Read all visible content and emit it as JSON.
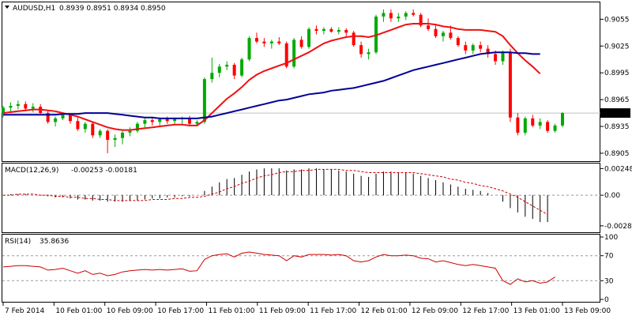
{
  "window": {
    "symbol_title": "AUDUSD,H1",
    "ohlc_text": "0.8939 0.8951 0.8934 0.8950"
  },
  "colors": {
    "background": "#ffffff",
    "frame": "#000000",
    "grid": "#c0c0c0",
    "bull": "#00aa00",
    "bear": "#ff0000",
    "ma_fast": "#ee1111",
    "ma_slow": "#000099",
    "price_marker_bg": "#000000",
    "macd_hist": "#000000",
    "macd_signal": "#cc0000",
    "rsi_line": "#cc0000",
    "level_line": "#999999"
  },
  "chart_data": [
    {
      "type": "candlestick",
      "title": "AUDUSD,H1 0.8939 0.8951 0.8934 0.8950",
      "ylim": [
        0.8897,
        0.9073
      ],
      "y_ticks": [
        "0.9055",
        "0.9025",
        "0.8995",
        "0.8965",
        "0.8935",
        "0.8905"
      ],
      "y_tick_values": [
        0.9055,
        0.9025,
        0.8995,
        0.8965,
        0.8935,
        0.8905
      ],
      "current_price_label": "0.8950",
      "current_price": 0.895,
      "grid": false,
      "candles": [
        [
          0.895,
          0.8958,
          0.8945,
          0.8956
        ],
        [
          0.8956,
          0.8962,
          0.895,
          0.8958
        ],
        [
          0.8958,
          0.8964,
          0.8954,
          0.896
        ],
        [
          0.896,
          0.8963,
          0.8952,
          0.8955
        ],
        [
          0.8955,
          0.8961,
          0.8951,
          0.8957
        ],
        [
          0.8957,
          0.896,
          0.8948,
          0.895
        ],
        [
          0.895,
          0.8952,
          0.8938,
          0.894
        ],
        [
          0.894,
          0.8946,
          0.8935,
          0.8944
        ],
        [
          0.8944,
          0.895,
          0.8942,
          0.8948
        ],
        [
          0.8948,
          0.895,
          0.8938,
          0.8941
        ],
        [
          0.8941,
          0.8945,
          0.893,
          0.8932
        ],
        [
          0.8932,
          0.894,
          0.8928,
          0.8938
        ],
        [
          0.8938,
          0.894,
          0.8922,
          0.8925
        ],
        [
          0.8925,
          0.8932,
          0.8922,
          0.893
        ],
        [
          0.893,
          0.8932,
          0.8905,
          0.892
        ],
        [
          0.892,
          0.8926,
          0.8912,
          0.8922
        ],
        [
          0.8922,
          0.893,
          0.8915,
          0.8928
        ],
        [
          0.8928,
          0.8934,
          0.8924,
          0.893
        ],
        [
          0.893,
          0.894,
          0.8928,
          0.8938
        ],
        [
          0.8938,
          0.8944,
          0.8934,
          0.8942
        ],
        [
          0.8942,
          0.8946,
          0.8936,
          0.894
        ],
        [
          0.894,
          0.8945,
          0.8936,
          0.8943
        ],
        [
          0.8943,
          0.8946,
          0.8938,
          0.8941
        ],
        [
          0.8941,
          0.8945,
          0.8937,
          0.8943
        ],
        [
          0.8943,
          0.8946,
          0.8938,
          0.8944
        ],
        [
          0.8944,
          0.8947,
          0.8935,
          0.8938
        ],
        [
          0.8938,
          0.8942,
          0.8935,
          0.894
        ],
        [
          0.894,
          0.899,
          0.8938,
          0.8988
        ],
        [
          0.8988,
          0.9012,
          0.8984,
          0.8995
        ],
        [
          0.8995,
          0.9005,
          0.899,
          0.9002
        ],
        [
          0.9002,
          0.9008,
          0.8998,
          0.9004
        ],
        [
          0.9004,
          0.9006,
          0.8988,
          0.8992
        ],
        [
          0.8992,
          0.9012,
          0.899,
          0.901
        ],
        [
          0.901,
          0.9036,
          0.9008,
          0.9034
        ],
        [
          0.9034,
          0.904,
          0.9028,
          0.903
        ],
        [
          0.903,
          0.9034,
          0.9024,
          0.9028
        ],
        [
          0.9028,
          0.9032,
          0.9022,
          0.903
        ],
        [
          0.903,
          0.9035,
          0.9026,
          0.9028
        ],
        [
          0.9028,
          0.903,
          0.9,
          0.9002
        ],
        [
          0.9002,
          0.9034,
          0.9,
          0.9032
        ],
        [
          0.9032,
          0.9036,
          0.9022,
          0.9024
        ],
        [
          0.9024,
          0.9046,
          0.9022,
          0.9044
        ],
        [
          0.9044,
          0.9048,
          0.9038,
          0.9042
        ],
        [
          0.9042,
          0.9046,
          0.9038,
          0.9044
        ],
        [
          0.9044,
          0.9046,
          0.904,
          0.9041
        ],
        [
          0.9041,
          0.9046,
          0.9038,
          0.9043
        ],
        [
          0.9043,
          0.9045,
          0.9036,
          0.904
        ],
        [
          0.904,
          0.9042,
          0.9024,
          0.9026
        ],
        [
          0.9026,
          0.903,
          0.9012,
          0.9016
        ],
        [
          0.9016,
          0.9022,
          0.901,
          0.9018
        ],
        [
          0.9018,
          0.906,
          0.9016,
          0.9058
        ],
        [
          0.9058,
          0.9066,
          0.9052,
          0.9062
        ],
        [
          0.9062,
          0.9066,
          0.9052,
          0.9056
        ],
        [
          0.9056,
          0.9062,
          0.9052,
          0.9058
        ],
        [
          0.9058,
          0.9064,
          0.9054,
          0.9062
        ],
        [
          0.9062,
          0.9066,
          0.9058,
          0.906
        ],
        [
          0.906,
          0.9062,
          0.9046,
          0.9048
        ],
        [
          0.9048,
          0.9056,
          0.9042,
          0.9044
        ],
        [
          0.9044,
          0.905,
          0.9034,
          0.9036
        ],
        [
          0.9036,
          0.9042,
          0.903,
          0.904
        ],
        [
          0.904,
          0.9048,
          0.9032,
          0.9034
        ],
        [
          0.9034,
          0.9036,
          0.9024,
          0.9026
        ],
        [
          0.9026,
          0.903,
          0.9016,
          0.902
        ],
        [
          0.902,
          0.9028,
          0.9016,
          0.9026
        ],
        [
          0.9026,
          0.903,
          0.9018,
          0.9022
        ],
        [
          0.9022,
          0.9026,
          0.9012,
          0.9016
        ],
        [
          0.9016,
          0.902,
          0.9004,
          0.9008
        ],
        [
          0.9008,
          0.902,
          0.9004,
          0.9018
        ],
        [
          0.9018,
          0.9022,
          0.894,
          0.8945
        ],
        [
          0.8945,
          0.895,
          0.8925,
          0.8928
        ],
        [
          0.8928,
          0.8946,
          0.8925,
          0.8944
        ],
        [
          0.8944,
          0.8948,
          0.8934,
          0.8936
        ],
        [
          0.8936,
          0.8944,
          0.8932,
          0.894
        ],
        [
          0.894,
          0.8942,
          0.8928,
          0.893
        ],
        [
          0.893,
          0.8938,
          0.8928,
          0.8936
        ],
        [
          0.8936,
          0.8951,
          0.8934,
          0.895
        ]
      ],
      "series": [
        {
          "values": [
            0.895,
            0.8951,
            0.8952,
            0.8953,
            0.8954,
            0.8954,
            0.8953,
            0.8952,
            0.895,
            0.8948,
            0.8946,
            0.8943,
            0.894,
            0.8937,
            0.8934,
            0.8932,
            0.8931,
            0.8931,
            0.8932,
            0.8933,
            0.8934,
            0.8935,
            0.8936,
            0.8937,
            0.8937,
            0.8936,
            0.8936,
            0.8942,
            0.895,
            0.8958,
            0.8966,
            0.8972,
            0.8979,
            0.8987,
            0.8993,
            0.8997,
            0.9,
            0.9003,
            0.9006,
            0.901,
            0.9014,
            0.9018,
            0.9023,
            0.9028,
            0.9031,
            0.9033,
            0.9035,
            0.9036,
            0.9036,
            0.9035,
            0.9037,
            0.904,
            0.9043,
            0.9046,
            0.9049,
            0.905,
            0.905,
            0.905,
            0.9049,
            0.9047,
            0.9046,
            0.9044,
            0.9043,
            0.9043,
            0.9043,
            0.9042,
            0.9041,
            0.9036,
            0.9026,
            0.9017,
            0.9009,
            0.9002,
            0.8994
          ]
        },
        {
          "values": [
            0.8948,
            0.8948,
            0.8948,
            0.8948,
            0.8948,
            0.8948,
            0.8948,
            0.8948,
            0.8949,
            0.8949,
            0.8949,
            0.895,
            0.895,
            0.895,
            0.895,
            0.8949,
            0.8948,
            0.8947,
            0.8946,
            0.8945,
            0.8945,
            0.8944,
            0.8944,
            0.8944,
            0.8944,
            0.8944,
            0.8944,
            0.8945,
            0.8946,
            0.8948,
            0.895,
            0.8952,
            0.8954,
            0.8956,
            0.8958,
            0.896,
            0.8962,
            0.8964,
            0.8965,
            0.8967,
            0.8969,
            0.8971,
            0.8972,
            0.8973,
            0.8975,
            0.8976,
            0.8977,
            0.8978,
            0.898,
            0.8982,
            0.8984,
            0.8986,
            0.8989,
            0.8992,
            0.8995,
            0.8998,
            0.9,
            0.9002,
            0.9004,
            0.9006,
            0.9008,
            0.901,
            0.9012,
            0.9014,
            0.9016,
            0.9017,
            0.9018,
            0.9018,
            0.9018,
            0.9017,
            0.9017,
            0.9016,
            0.9016
          ]
        }
      ]
    },
    {
      "type": "bar",
      "title": "MACD(12,26,9) -0.00253 -0.00181",
      "label_main": "MACD(12,26,9)",
      "label_values": "-0.00253 -0.00181",
      "ylim": [
        -0.0033,
        0.0028
      ],
      "y_ticks": [
        "0.00248",
        "0.00",
        "-0.00285"
      ],
      "y_tick_values": [
        0.00248,
        0.0,
        -0.00285
      ],
      "zero_line": 0.0,
      "values": [
        0.0,
        0.0001,
        0.0001,
        0.0001,
        0.0,
        0.0,
        -0.0001,
        -0.0002,
        -0.0002,
        -0.0003,
        -0.0004,
        -0.0004,
        -0.0005,
        -0.0005,
        -0.0006,
        -0.0006,
        -0.0006,
        -0.0005,
        -0.0005,
        -0.0004,
        -0.0003,
        -0.0003,
        -0.0002,
        -0.0002,
        -0.0001,
        -0.0001,
        0.0,
        0.0004,
        0.0008,
        0.0012,
        0.0015,
        0.0016,
        0.0019,
        0.0022,
        0.0024,
        0.0025,
        0.0025,
        0.0025,
        0.0023,
        0.0024,
        0.0024,
        0.0025,
        0.0025,
        0.0024,
        0.0024,
        0.0023,
        0.0022,
        0.002,
        0.0018,
        0.0017,
        0.002,
        0.0022,
        0.0022,
        0.0021,
        0.0021,
        0.002,
        0.0018,
        0.0016,
        0.0014,
        0.0012,
        0.001,
        0.0008,
        0.0006,
        0.0005,
        0.0004,
        0.0002,
        0.0,
        -0.0006,
        -0.0012,
        -0.0016,
        -0.002,
        -0.0022,
        -0.0025,
        -0.0025
      ],
      "signal": [
        0.0,
        0.0,
        0.0001,
        0.0001,
        0.0001,
        0.0,
        0.0,
        -0.0001,
        -0.0001,
        -0.0002,
        -0.0002,
        -0.0003,
        -0.0003,
        -0.0004,
        -0.0004,
        -0.0005,
        -0.0005,
        -0.0005,
        -0.0005,
        -0.0005,
        -0.0004,
        -0.0004,
        -0.0004,
        -0.0003,
        -0.0003,
        -0.0002,
        -0.0002,
        -0.0001,
        0.0001,
        0.0003,
        0.0006,
        0.0008,
        0.0011,
        0.0013,
        0.0016,
        0.0018,
        0.0019,
        0.0021,
        0.0022,
        0.0022,
        0.0023,
        0.0023,
        0.0024,
        0.0024,
        0.0024,
        0.0024,
        0.0023,
        0.0023,
        0.0022,
        0.0021,
        0.0021,
        0.0021,
        0.0021,
        0.0021,
        0.0021,
        0.0021,
        0.002,
        0.0019,
        0.0018,
        0.0017,
        0.0015,
        0.0014,
        0.0012,
        0.0011,
        0.0009,
        0.0008,
        0.0006,
        0.0004,
        0.0001,
        -0.0002,
        -0.0006,
        -0.001,
        -0.0014,
        -0.0018
      ]
    },
    {
      "type": "line",
      "title": "RSI(14) 35.8636",
      "label_main": "RSI(14)",
      "label_values": "35.8636",
      "ylim": [
        0,
        100
      ],
      "y_ticks": [
        "100",
        "70",
        "30",
        "0"
      ],
      "y_tick_values": [
        100,
        70,
        30,
        0
      ],
      "levels": [
        70,
        30
      ],
      "values": [
        52,
        53,
        54,
        54,
        53,
        52,
        47,
        48,
        50,
        46,
        42,
        46,
        40,
        42,
        38,
        40,
        44,
        46,
        47,
        48,
        47,
        48,
        47,
        48,
        49,
        45,
        46,
        64,
        70,
        72,
        73,
        68,
        74,
        76,
        74,
        72,
        71,
        70,
        62,
        70,
        68,
        72,
        72,
        72,
        71,
        72,
        70,
        62,
        60,
        62,
        68,
        72,
        70,
        70,
        71,
        70,
        66,
        65,
        60,
        62,
        59,
        56,
        54,
        56,
        54,
        52,
        50,
        30,
        24,
        33,
        28,
        30,
        26,
        28,
        36
      ]
    }
  ],
  "x_axis": {
    "labels": [
      "7 Feb 2014",
      "10 Feb 01:00",
      "10 Feb 09:00",
      "10 Feb 17:00",
      "11 Feb 01:00",
      "11 Feb 09:00",
      "11 Feb 17:00",
      "12 Feb 01:00",
      "12 Feb 09:00",
      "12 Feb 17:00",
      "13 Feb 01:00",
      "13 Feb 09:00"
    ],
    "label_bar_index": [
      0,
      8,
      16,
      24,
      32,
      40,
      48,
      56,
      64,
      72,
      80,
      88
    ]
  }
}
